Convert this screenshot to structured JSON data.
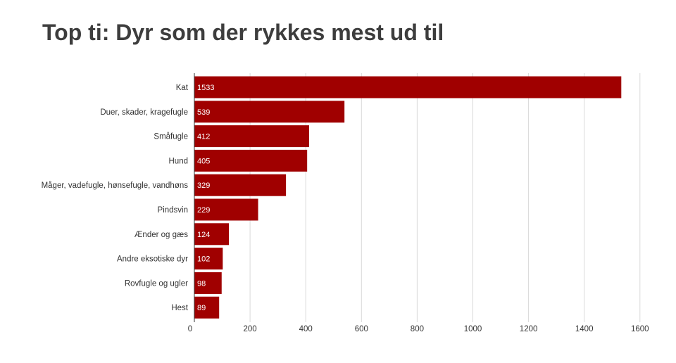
{
  "chart_data": {
    "type": "bar",
    "orientation": "horizontal",
    "title": "Top ti: Dyr som der rykkes mest ud til",
    "categories": [
      "Kat",
      "Duer, skader, kragefugle",
      "Småfugle",
      "Hund",
      "Måger, vadefugle, hønsefugle, vandhøns",
      "Pindsvin",
      "Ænder og gæs",
      "Andre eksotiske dyr",
      "Rovfugle og ugler",
      "Hest"
    ],
    "values": [
      1533,
      539,
      412,
      405,
      329,
      229,
      124,
      102,
      98,
      89
    ],
    "xlim": [
      0,
      1600
    ],
    "ticks": [
      0,
      200,
      400,
      600,
      800,
      1000,
      1200,
      1400,
      1600
    ],
    "grid": true,
    "bar_color": "#a00000",
    "grid_color": "#d9d9d9",
    "label_color": "#ffffff"
  }
}
